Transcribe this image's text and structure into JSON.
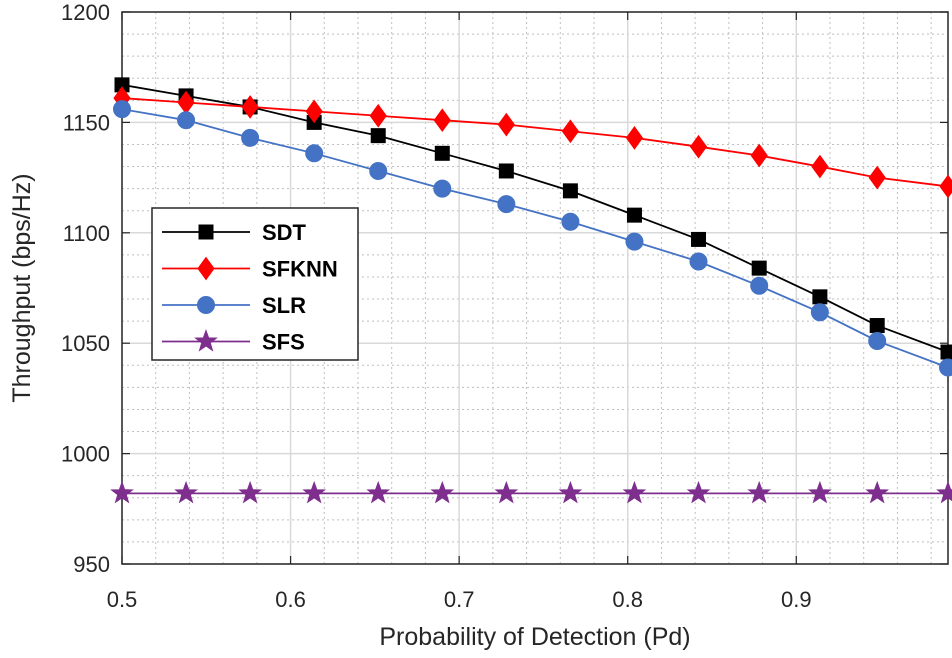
{
  "chart_data": {
    "type": "line",
    "title": "",
    "xlabel": "Probability of Detection (Pd)",
    "ylabel": "Throughput (bps/Hz)",
    "xlim": [
      0.5,
      0.99
    ],
    "ylim": [
      950,
      1200
    ],
    "xticks": [
      0.5,
      0.6,
      0.7,
      0.8,
      0.9
    ],
    "xtick_labels": [
      "0.5",
      "0.6",
      "0.7",
      "0.8",
      "0.9"
    ],
    "yticks": [
      950,
      1000,
      1050,
      1100,
      1150,
      1200
    ],
    "ytick_labels": [
      "950",
      "1000",
      "1050",
      "1100",
      "1150",
      "1200"
    ],
    "grid": true,
    "minor_grid": true,
    "legend_position": "center-left",
    "x": [
      0.5,
      0.538,
      0.576,
      0.614,
      0.652,
      0.69,
      0.728,
      0.766,
      0.804,
      0.842,
      0.878,
      0.914,
      0.948,
      0.99
    ],
    "series": [
      {
        "name": "SDT",
        "color": "#000000",
        "marker": "square",
        "values": [
          1167,
          1162,
          1157,
          1150,
          1144,
          1136,
          1128,
          1119,
          1108,
          1097,
          1084,
          1071,
          1058,
          1046
        ]
      },
      {
        "name": "SFKNN",
        "color": "#ff0000",
        "marker": "diamond",
        "values": [
          1161,
          1159,
          1157,
          1155,
          1153,
          1151,
          1149,
          1146,
          1143,
          1139,
          1135,
          1130,
          1125,
          1121
        ]
      },
      {
        "name": "SLR",
        "color": "#4472c4",
        "marker": "circle",
        "values": [
          1156,
          1151,
          1143,
          1136,
          1128,
          1120,
          1113,
          1105,
          1096,
          1087,
          1076,
          1064,
          1051,
          1039
        ]
      },
      {
        "name": "SFS",
        "color": "#7e2f8e",
        "marker": "star",
        "values": [
          982,
          982,
          982,
          982,
          982,
          982,
          982,
          982,
          982,
          982,
          982,
          982,
          982,
          982
        ]
      }
    ]
  }
}
